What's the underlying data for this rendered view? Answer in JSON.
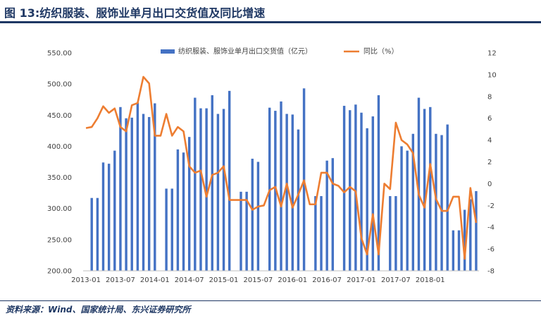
{
  "header": {
    "title": "图 13:纺织服装、服饰业单月出口交货值及同比增速"
  },
  "footer": {
    "source": "资料来源：Wind、国家统计局、东兴证券研究所"
  },
  "chart_data": {
    "type": "bar",
    "title": "图 13:纺织服装、服饰业单月出口交货值及同比增速",
    "xlabel": "",
    "ylabel": "",
    "ylim": [
      200,
      550
    ],
    "y2lim": [
      -8,
      12
    ],
    "y_ticks": [
      "550.00",
      "500.00",
      "450.00",
      "400.00",
      "350.00",
      "300.00",
      "250.00",
      "200.00"
    ],
    "y2_ticks": [
      "12",
      "10",
      "8",
      "6",
      "4",
      "2",
      "0",
      "-2",
      "-4",
      "-6",
      "-8"
    ],
    "x_ticks": [
      "2013-01",
      "2013-07",
      "2014-01",
      "2014-07",
      "2015-01",
      "2015-07",
      "2016-01",
      "2016-07",
      "2017-01",
      "2017-07",
      "2018-01"
    ],
    "legend_position": "top",
    "colors": {
      "bar": "#4472c4",
      "line": "#ed7d31"
    },
    "series": [
      {
        "name": "纺织服装、服饰业单月出口交货值（亿元）",
        "type": "bar",
        "axis": "left",
        "values": [
          null,
          317,
          317,
          374,
          372,
          393,
          463,
          445,
          446,
          470,
          452,
          447,
          469,
          null,
          332,
          332,
          395,
          390,
          415,
          478,
          461,
          461,
          482,
          452,
          460,
          489,
          null,
          327,
          327,
          380,
          375,
          null,
          462,
          457,
          472,
          452,
          451,
          427,
          493,
          null,
          320,
          320,
          377,
          381,
          null,
          465,
          458,
          467,
          454,
          429,
          448,
          482,
          null,
          320,
          320,
          400,
          393,
          420,
          478,
          460,
          463,
          420,
          418,
          435,
          265,
          265,
          298,
          315,
          328
        ]
      },
      {
        "name": "同比（%）",
        "type": "line",
        "axis": "right",
        "values": [
          5.1,
          5.2,
          6,
          7.1,
          6.5,
          6.9,
          5.2,
          4.8,
          7.2,
          7.4,
          9.8,
          9.2,
          4.4,
          4.4,
          6.4,
          4.4,
          5.2,
          4.8,
          1.6,
          1,
          1.2,
          -1.2,
          0.8,
          1,
          1.6,
          -1.5,
          -1.5,
          -1.5,
          -1.5,
          -2.4,
          -2.1,
          -2,
          -0.6,
          -0.3,
          -2.1,
          0,
          -2.2,
          -1,
          0.3,
          -1.9,
          -1.9,
          1,
          1,
          0,
          -0.2,
          -0.8,
          -0.3,
          -0.7,
          -5,
          -6.5,
          -2.8,
          -6.5,
          0,
          -0.5,
          5.6,
          4,
          3.6,
          2.8,
          -1,
          -2.2,
          1.8,
          -1.4,
          -2.5,
          -2.5,
          -1.2,
          -1.2,
          -6.9,
          -0.4,
          -3.6
        ]
      }
    ]
  }
}
